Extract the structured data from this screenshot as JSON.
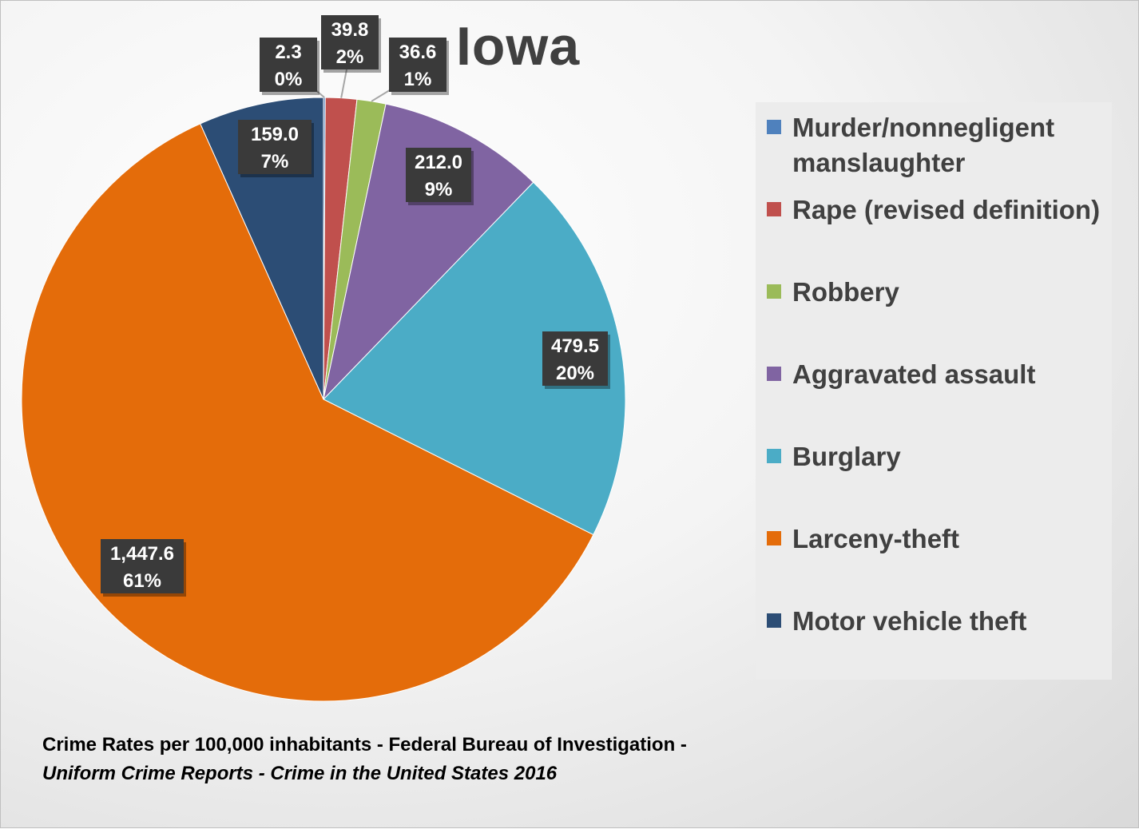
{
  "chart_data": {
    "type": "pie",
    "title": "Iowa",
    "categories": [
      "Murder/nonnegligent manslaughter",
      "Rape (revised definition)",
      "Robbery",
      "Aggravated assault",
      "Burglary",
      "Larceny-theft",
      "Motor vehicle theft"
    ],
    "values": [
      2.3,
      39.8,
      36.6,
      212.0,
      479.5,
      1447.6,
      159.0
    ],
    "value_labels": [
      "2.3",
      "39.8",
      "36.6",
      "212.0",
      "479.5",
      "1,447.6",
      "159.0"
    ],
    "percent_labels": [
      "0%",
      "2%",
      "1%",
      "9%",
      "20%",
      "61%",
      "7%"
    ],
    "colors": [
      "#4f81bd",
      "#c0504d",
      "#9bbb59",
      "#8064a2",
      "#4bacc6",
      "#e46c0a",
      "#2c4d75"
    ],
    "legend_position": "right",
    "start_angle": "12 o'clock, clockwise"
  },
  "source": {
    "text_plain": "Crime Rates per 100,000 inhabitants - Federal Bureau of Investigation - ",
    "text_italic": "Uniform Crime Reports - Crime in the United States 2016"
  }
}
